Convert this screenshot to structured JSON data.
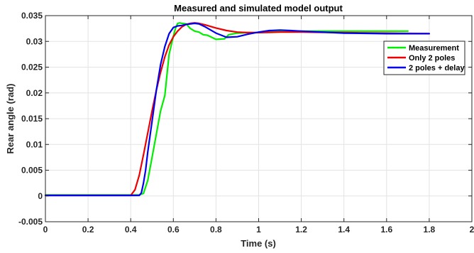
{
  "chart_data": {
    "type": "line",
    "title": "Measured and simulated model output",
    "xlabel": "Time (s)",
    "ylabel": "Rear angle (rad)",
    "xlim": [
      0,
      2
    ],
    "ylim": [
      -0.005,
      0.035
    ],
    "xticks": [
      0,
      0.2,
      0.4,
      0.6,
      0.8,
      1,
      1.2,
      1.4,
      1.6,
      1.8,
      2
    ],
    "xtick_labels": [
      "0",
      "0.2",
      "0.4",
      "0.6",
      "0.8",
      "1",
      "1.2",
      "1.4",
      "1.6",
      "1.8",
      "2"
    ],
    "yticks": [
      -0.005,
      0,
      0.005,
      0.01,
      0.015,
      0.02,
      0.025,
      0.03,
      0.035
    ],
    "ytick_labels": [
      "-0.005",
      "0",
      "0.005",
      "0.01",
      "0.015",
      "0.02",
      "0.025",
      "0.03",
      "0.035"
    ],
    "grid": true,
    "legend_position": "top-right",
    "series": [
      {
        "name": "Measurement",
        "color": "#00ee00",
        "x": [
          0,
          0.44,
          0.46,
          0.48,
          0.5,
          0.52,
          0.54,
          0.56,
          0.58,
          0.6,
          0.61,
          0.62,
          0.63,
          0.64,
          0.66,
          0.68,
          0.7,
          0.72,
          0.74,
          0.76,
          0.78,
          0.8,
          0.84,
          0.86,
          0.9,
          0.95,
          1.0,
          1.1,
          1.2,
          1.4,
          1.6,
          1.7
        ],
        "y": [
          0.0002,
          0.0002,
          0.0005,
          0.003,
          0.0075,
          0.012,
          0.0165,
          0.0195,
          0.0275,
          0.031,
          0.0325,
          0.0335,
          0.0336,
          0.0335,
          0.0334,
          0.0325,
          0.032,
          0.0318,
          0.0313,
          0.0312,
          0.0308,
          0.0304,
          0.0305,
          0.0313,
          0.0316,
          0.0317,
          0.0317,
          0.032,
          0.032,
          0.032,
          0.032,
          0.032
        ]
      },
      {
        "name": "Only 2 poles",
        "color": "#ee0000",
        "x": [
          0,
          0.4,
          0.42,
          0.44,
          0.46,
          0.48,
          0.5,
          0.52,
          0.54,
          0.56,
          0.58,
          0.6,
          0.62,
          0.64,
          0.66,
          0.68,
          0.7,
          0.72,
          0.75,
          0.8,
          0.85,
          0.9,
          0.95,
          1.0,
          1.1,
          1.2,
          1.4,
          1.6,
          1.8
        ],
        "y": [
          0.0001,
          0.0001,
          0.0012,
          0.004,
          0.008,
          0.0122,
          0.0165,
          0.0205,
          0.024,
          0.027,
          0.0293,
          0.0309,
          0.032,
          0.0328,
          0.0333,
          0.0335,
          0.0336,
          0.0335,
          0.0332,
          0.0326,
          0.0321,
          0.0318,
          0.0317,
          0.0317,
          0.0318,
          0.0318,
          0.0317,
          0.0316,
          0.0315
        ]
      },
      {
        "name": "2 poles + delay",
        "color": "#0000ee",
        "x": [
          0,
          0.44,
          0.45,
          0.46,
          0.47,
          0.48,
          0.5,
          0.52,
          0.54,
          0.56,
          0.58,
          0.6,
          0.62,
          0.64,
          0.66,
          0.68,
          0.7,
          0.72,
          0.75,
          0.8,
          0.85,
          0.9,
          0.95,
          1.0,
          1.05,
          1.1,
          1.15,
          1.2,
          1.4,
          1.6,
          1.8
        ],
        "y": [
          0.0001,
          0.0001,
          0.0006,
          0.0025,
          0.005,
          0.0085,
          0.0145,
          0.0205,
          0.0255,
          0.029,
          0.0315,
          0.0327,
          0.033,
          0.0331,
          0.0333,
          0.0334,
          0.0335,
          0.0334,
          0.0328,
          0.0316,
          0.0308,
          0.0309,
          0.0314,
          0.0318,
          0.0321,
          0.0322,
          0.0321,
          0.032,
          0.0316,
          0.0315,
          0.0315
        ]
      }
    ]
  }
}
